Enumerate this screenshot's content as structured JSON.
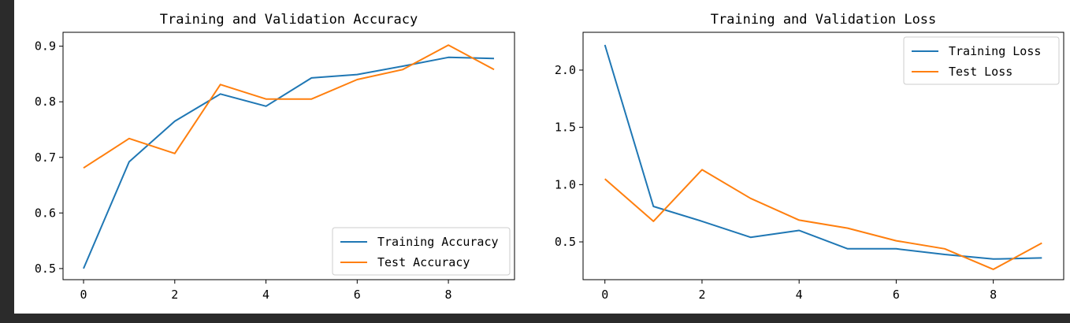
{
  "chart_data": [
    {
      "type": "line",
      "title": "Training and Validation Accuracy",
      "xlabel": "",
      "ylabel": "",
      "x": [
        0,
        1,
        2,
        3,
        4,
        5,
        6,
        7,
        8,
        9
      ],
      "xlim": [
        -0.45,
        9.45
      ],
      "ylim": [
        0.48,
        0.925
      ],
      "xticks": [
        0,
        2,
        4,
        6,
        8
      ],
      "yticks": [
        0.5,
        0.6,
        0.7,
        0.8,
        0.9
      ],
      "ytick_labels": [
        "0.5",
        "0.6",
        "0.7",
        "0.8",
        "0.9"
      ],
      "legend_loc": "lower-right",
      "series": [
        {
          "name": "Training Accuracy",
          "color": "#1f77b4",
          "values": [
            0.5,
            0.692,
            0.765,
            0.814,
            0.792,
            0.843,
            0.849,
            0.864,
            0.88,
            0.878
          ]
        },
        {
          "name": "Test Accuracy",
          "color": "#ff7f0e",
          "values": [
            0.681,
            0.734,
            0.707,
            0.831,
            0.805,
            0.805,
            0.84,
            0.858,
            0.902,
            0.858
          ]
        }
      ]
    },
    {
      "type": "line",
      "title": "Training and Validation Loss",
      "xlabel": "",
      "ylabel": "",
      "x": [
        0,
        1,
        2,
        3,
        4,
        5,
        6,
        7,
        8,
        9
      ],
      "xlim": [
        -0.45,
        9.45
      ],
      "ylim": [
        0.17,
        2.33
      ],
      "xticks": [
        0,
        2,
        4,
        6,
        8
      ],
      "yticks": [
        0.5,
        1.0,
        1.5,
        2.0
      ],
      "ytick_labels": [
        "0.5",
        "1.0",
        "1.5",
        "2.0"
      ],
      "legend_loc": "upper-right",
      "series": [
        {
          "name": "Training Loss",
          "color": "#1f77b4",
          "values": [
            2.22,
            0.81,
            0.68,
            0.54,
            0.6,
            0.44,
            0.44,
            0.39,
            0.35,
            0.36
          ]
        },
        {
          "name": "Test Loss",
          "color": "#ff7f0e",
          "values": [
            1.05,
            0.68,
            1.13,
            0.88,
            0.69,
            0.62,
            0.51,
            0.44,
            0.26,
            0.49
          ]
        }
      ]
    }
  ]
}
